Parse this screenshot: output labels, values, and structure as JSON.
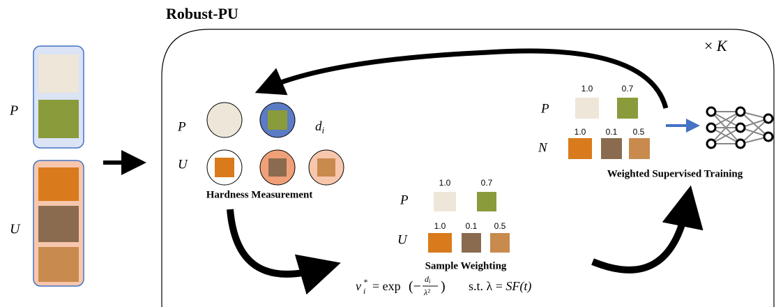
{
  "title": "Robust-PU",
  "repeat": {
    "symbol": "×",
    "count": "K"
  },
  "input": {
    "p_label": "P",
    "u_label": "U"
  },
  "hardness": {
    "p_label": "P",
    "u_label": "U",
    "distance": "d",
    "distance_sub": "i",
    "caption": "Hardness Measurement"
  },
  "sample_weighting": {
    "p_label": "P",
    "u_label": "U",
    "p_weights": [
      "1.0",
      "0.7"
    ],
    "u_weights": [
      "1.0",
      "0.1",
      "0.5"
    ],
    "caption": "Sample Weighting",
    "formula": {
      "var": "v",
      "sub": "i",
      "sup": "*",
      "op": "= exp",
      "open": "(−",
      "num": "d",
      "num_sub": "i",
      "den": "λ²",
      "close": ")",
      "constraint": "s.t. λ = ",
      "schedule": "SF(t)"
    }
  },
  "training": {
    "p_label": "P",
    "n_label": "N",
    "p_weights": [
      "1.0",
      "0.7"
    ],
    "n_weights": [
      "1.0",
      "0.1",
      "0.5"
    ],
    "caption": "Weighted Supervised Training"
  }
}
